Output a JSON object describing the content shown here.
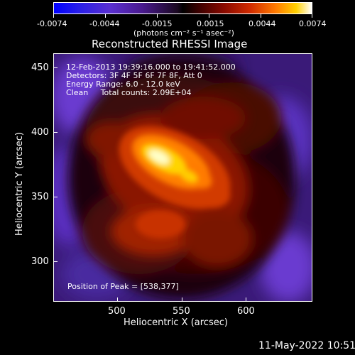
{
  "colorbar": {
    "tick_labels": [
      "-0.0074",
      "-0.0044",
      "-0.0015",
      "0.0015",
      "0.0044",
      "0.0074"
    ],
    "units_label": "(photons cm⁻² s⁻¹ asec⁻²)"
  },
  "title": "Reconstructed RHESSI Image",
  "annotations": {
    "time_range": "12-Feb-2013 19:39:16.000 to 19:41:52.000",
    "detectors": "Detectors: 3F 4F 5F 6F 7F 8F, Att 0",
    "energy_range": "Energy Range: 6.0 - 12.0 keV",
    "clean_counts": "Clean     Total counts: 2.09E+04",
    "peak_position": "Position of Peak = [538,377]"
  },
  "axes": {
    "xlabel": "Heliocentric X (arcsec)",
    "ylabel": "Heliocentric Y (arcsec)",
    "x_ticks": [
      "500",
      "550",
      "600"
    ],
    "y_ticks": [
      "450",
      "400",
      "350",
      "300"
    ]
  },
  "footer_timestamp": "11-May-2022 10:51",
  "colors": {
    "background": "#000000",
    "text": "#ffffff",
    "negative_end": "#0000ff",
    "positive_end": "#ffffff"
  }
}
